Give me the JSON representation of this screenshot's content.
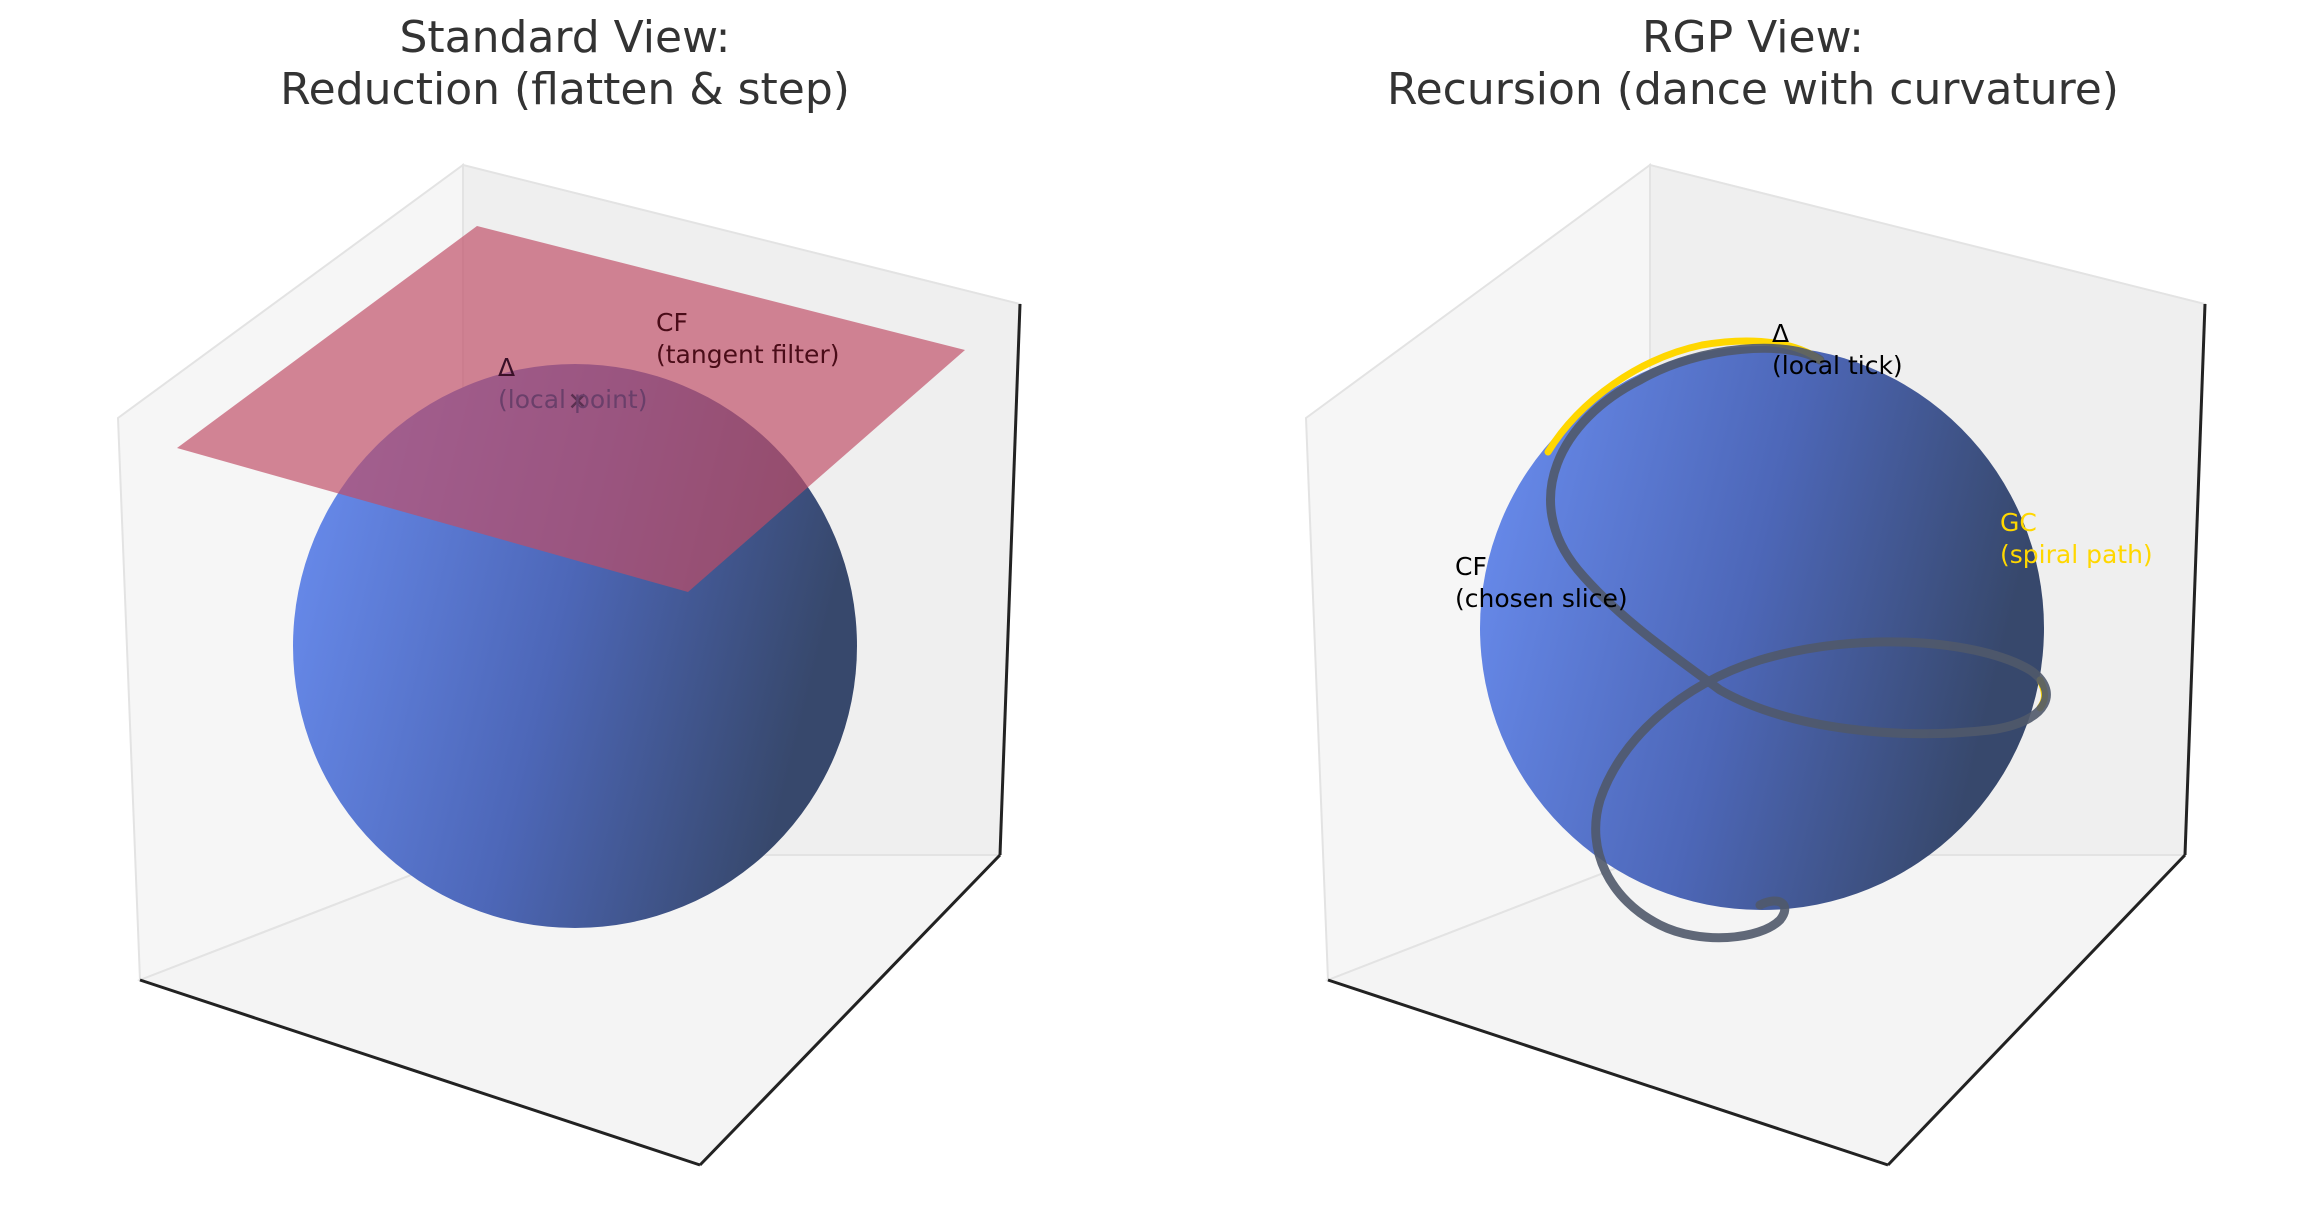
{
  "panels": {
    "left": {
      "title_line1": "Standard View:",
      "title_line2": "Reduction (flatten & step)",
      "labels": {
        "delta_symbol": "Δ",
        "delta_text": "(local point)",
        "cf_title": "CF",
        "cf_text": "(tangent filter)",
        "point_marker": "✕"
      }
    },
    "right": {
      "title_line1": "RGP View:",
      "title_line2": "Recursion (dance with curvature)",
      "labels": {
        "delta_symbol": "Δ",
        "delta_text": "(local tick)",
        "cf_title": "CF",
        "cf_text": "(chosen slice)",
        "gc_title": "GC",
        "gc_text": "(spiral path)"
      }
    }
  },
  "colors": {
    "sphere_light": "#6a8ef0",
    "sphere_dark": "#3a4a6e",
    "plane": "#c04d66",
    "spiral_path": "#ffd700",
    "trace": "#50596a",
    "pane_fill": "#f2f2f2",
    "gc_label": "#ffd700",
    "cf_label_left": "#4a0c18"
  }
}
